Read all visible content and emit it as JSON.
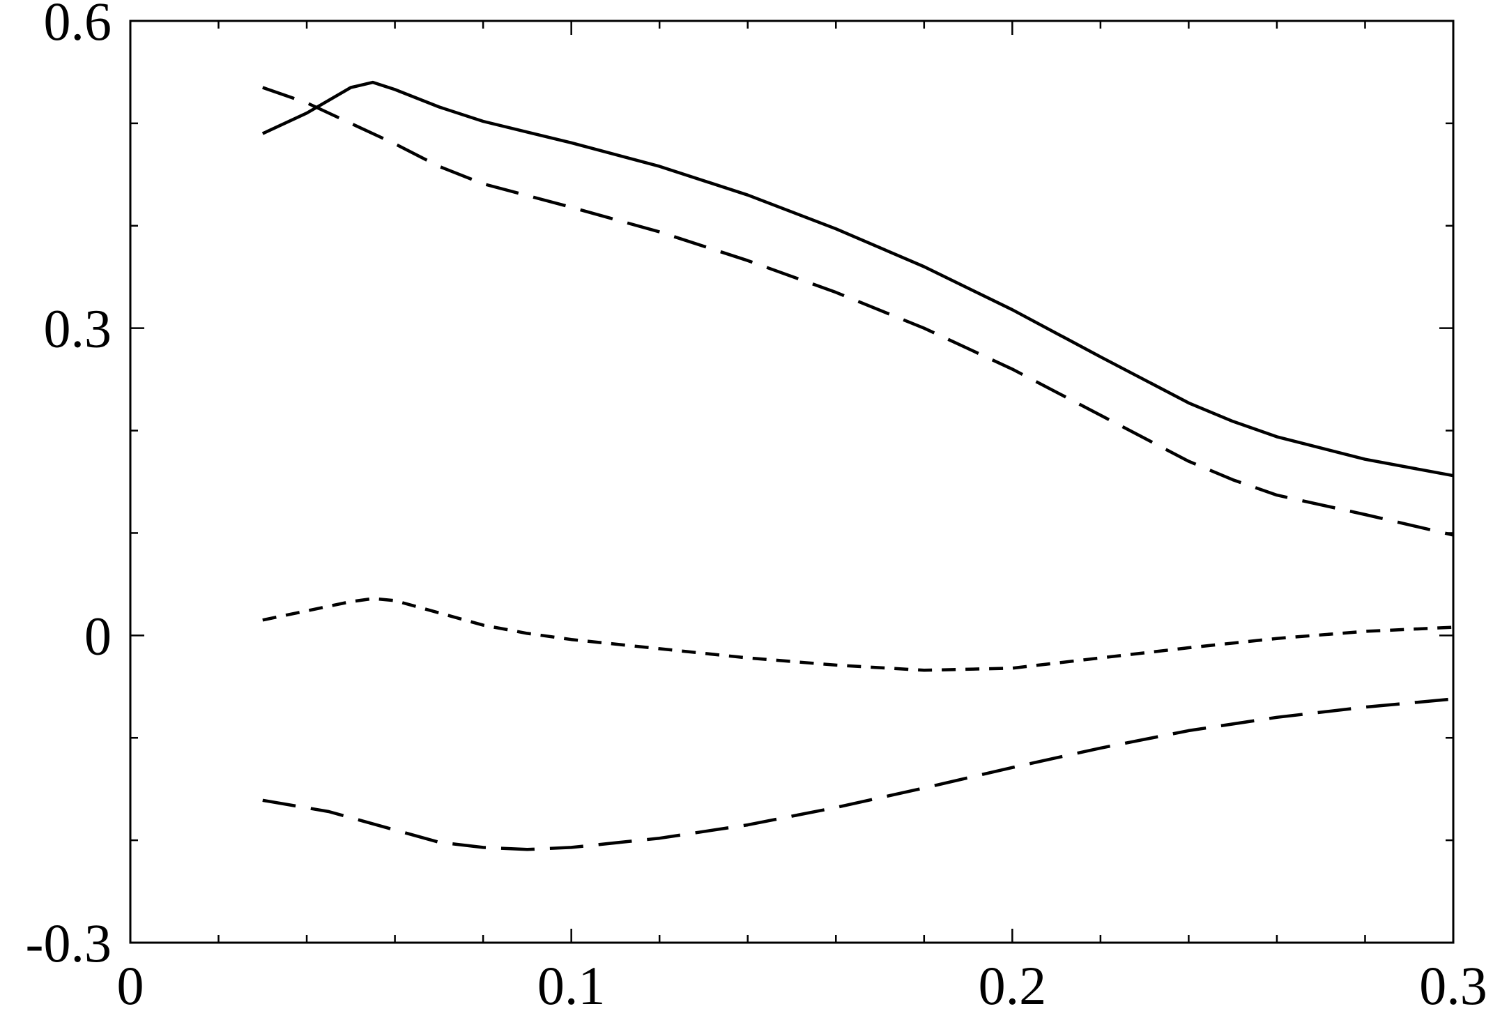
{
  "chart_data": {
    "type": "line",
    "title": "",
    "xlabel": "",
    "ylabel": "",
    "xlim": [
      0,
      0.3
    ],
    "ylim": [
      -0.3,
      0.6
    ],
    "x_ticks": [
      0,
      0.1,
      0.2,
      0.3
    ],
    "x_tick_labels": [
      "0",
      "0.1",
      "0.2",
      "0.3"
    ],
    "y_ticks": [
      -0.3,
      0,
      0.3,
      0.6
    ],
    "y_tick_labels": [
      "-0.3",
      "0",
      "0.3",
      "0.6"
    ],
    "x_minor_step": 0.02,
    "y_minor_step": 0.1,
    "grid": false,
    "legend": "none",
    "series": [
      {
        "style": "solid",
        "x": [
          0.03,
          0.04,
          0.05,
          0.055,
          0.06,
          0.07,
          0.08,
          0.1,
          0.12,
          0.14,
          0.16,
          0.18,
          0.2,
          0.22,
          0.24,
          0.25,
          0.26,
          0.28,
          0.3
        ],
        "y": [
          0.49,
          0.51,
          0.535,
          0.54,
          0.533,
          0.516,
          0.502,
          0.481,
          0.458,
          0.43,
          0.397,
          0.36,
          0.318,
          0.272,
          0.227,
          0.209,
          0.194,
          0.172,
          0.156
        ]
      },
      {
        "style": "long-dash",
        "x": [
          0.03,
          0.04,
          0.05,
          0.06,
          0.07,
          0.08,
          0.1,
          0.12,
          0.14,
          0.16,
          0.18,
          0.2,
          0.22,
          0.24,
          0.25,
          0.26,
          0.28,
          0.3
        ],
        "y": [
          0.535,
          0.52,
          0.5,
          0.48,
          0.458,
          0.441,
          0.418,
          0.394,
          0.366,
          0.335,
          0.3,
          0.26,
          0.215,
          0.17,
          0.152,
          0.137,
          0.118,
          0.098
        ]
      },
      {
        "style": "short-dash",
        "x": [
          0.03,
          0.04,
          0.05,
          0.055,
          0.06,
          0.07,
          0.08,
          0.09,
          0.1,
          0.12,
          0.14,
          0.16,
          0.18,
          0.2,
          0.22,
          0.24,
          0.26,
          0.28,
          0.3
        ],
        "y": [
          0.015,
          0.024,
          0.033,
          0.036,
          0.034,
          0.022,
          0.01,
          0.002,
          -0.004,
          -0.013,
          -0.022,
          -0.029,
          -0.034,
          -0.032,
          -0.022,
          -0.012,
          -0.003,
          0.004,
          0.008
        ]
      },
      {
        "style": "long-dash",
        "x": [
          0.03,
          0.045,
          0.06,
          0.07,
          0.08,
          0.09,
          0.1,
          0.12,
          0.14,
          0.16,
          0.18,
          0.2,
          0.22,
          0.24,
          0.26,
          0.28,
          0.3
        ],
        "y": [
          -0.161,
          -0.172,
          -0.19,
          -0.202,
          -0.207,
          -0.209,
          -0.207,
          -0.198,
          -0.185,
          -0.168,
          -0.149,
          -0.129,
          -0.11,
          -0.093,
          -0.08,
          -0.07,
          -0.062
        ]
      }
    ]
  }
}
